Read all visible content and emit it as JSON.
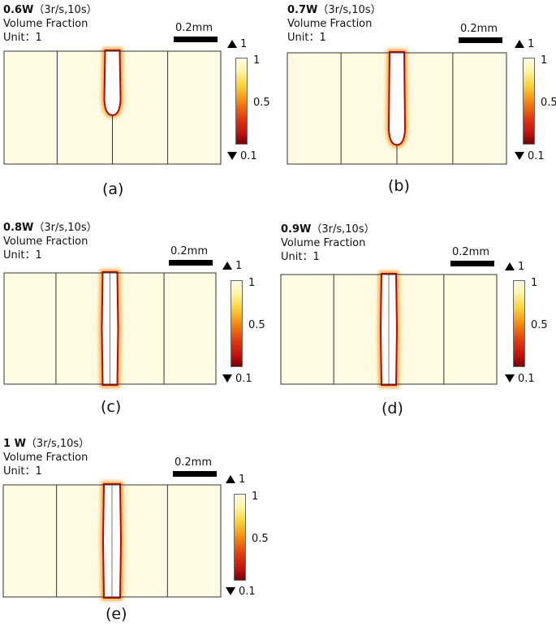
{
  "panels": [
    {
      "power": "0.6W",
      "params": "（3r/s,10s）",
      "quantity": "Volume Fraction",
      "unit": "Unit：1",
      "scale": "0.2mm",
      "max_label": "1",
      "min_label": "0.1",
      "ticks": [
        "1",
        "0.5"
      ],
      "caption": "(a)",
      "groove": "u-short"
    },
    {
      "power": "0.7W",
      "params": "（3r/s,10s）",
      "quantity": "Volume Fraction",
      "unit": "Unit：1",
      "scale": "0.2mm",
      "max_label": "1",
      "min_label": "0.1",
      "ticks": [
        "1",
        "0.5"
      ],
      "caption": "(b)",
      "groove": "u-deep"
    },
    {
      "power": "0.8W",
      "params": "（3r/s,10s）",
      "quantity": "Volume Fraction",
      "unit": "Unit：1",
      "scale": "0.2mm",
      "max_label": "1",
      "min_label": "0.1",
      "ticks": [
        "1",
        "0.5"
      ],
      "caption": "(c)",
      "groove": "through"
    },
    {
      "power": "0.9W",
      "params": "（3r/s,10s）",
      "quantity": "Volume Fraction",
      "unit": "Unit：1",
      "scale": "0.2mm",
      "max_label": "1",
      "min_label": "0.1",
      "ticks": [
        "1",
        "0.5"
      ],
      "caption": "(d)",
      "groove": "through"
    },
    {
      "power": "1 W",
      "params": "（3r/s,10s）",
      "quantity": "Volume Fraction",
      "unit": "Unit：1",
      "scale": "0.2mm",
      "max_label": "1",
      "min_label": "0.1",
      "ticks": [
        "1",
        "0.5"
      ],
      "caption": "(e)",
      "groove": "through"
    }
  ],
  "colors": {
    "domain": "#fefbe2",
    "edge": "#333333",
    "melt_front": "#b80808",
    "outer_glow": "#f59a1c"
  }
}
